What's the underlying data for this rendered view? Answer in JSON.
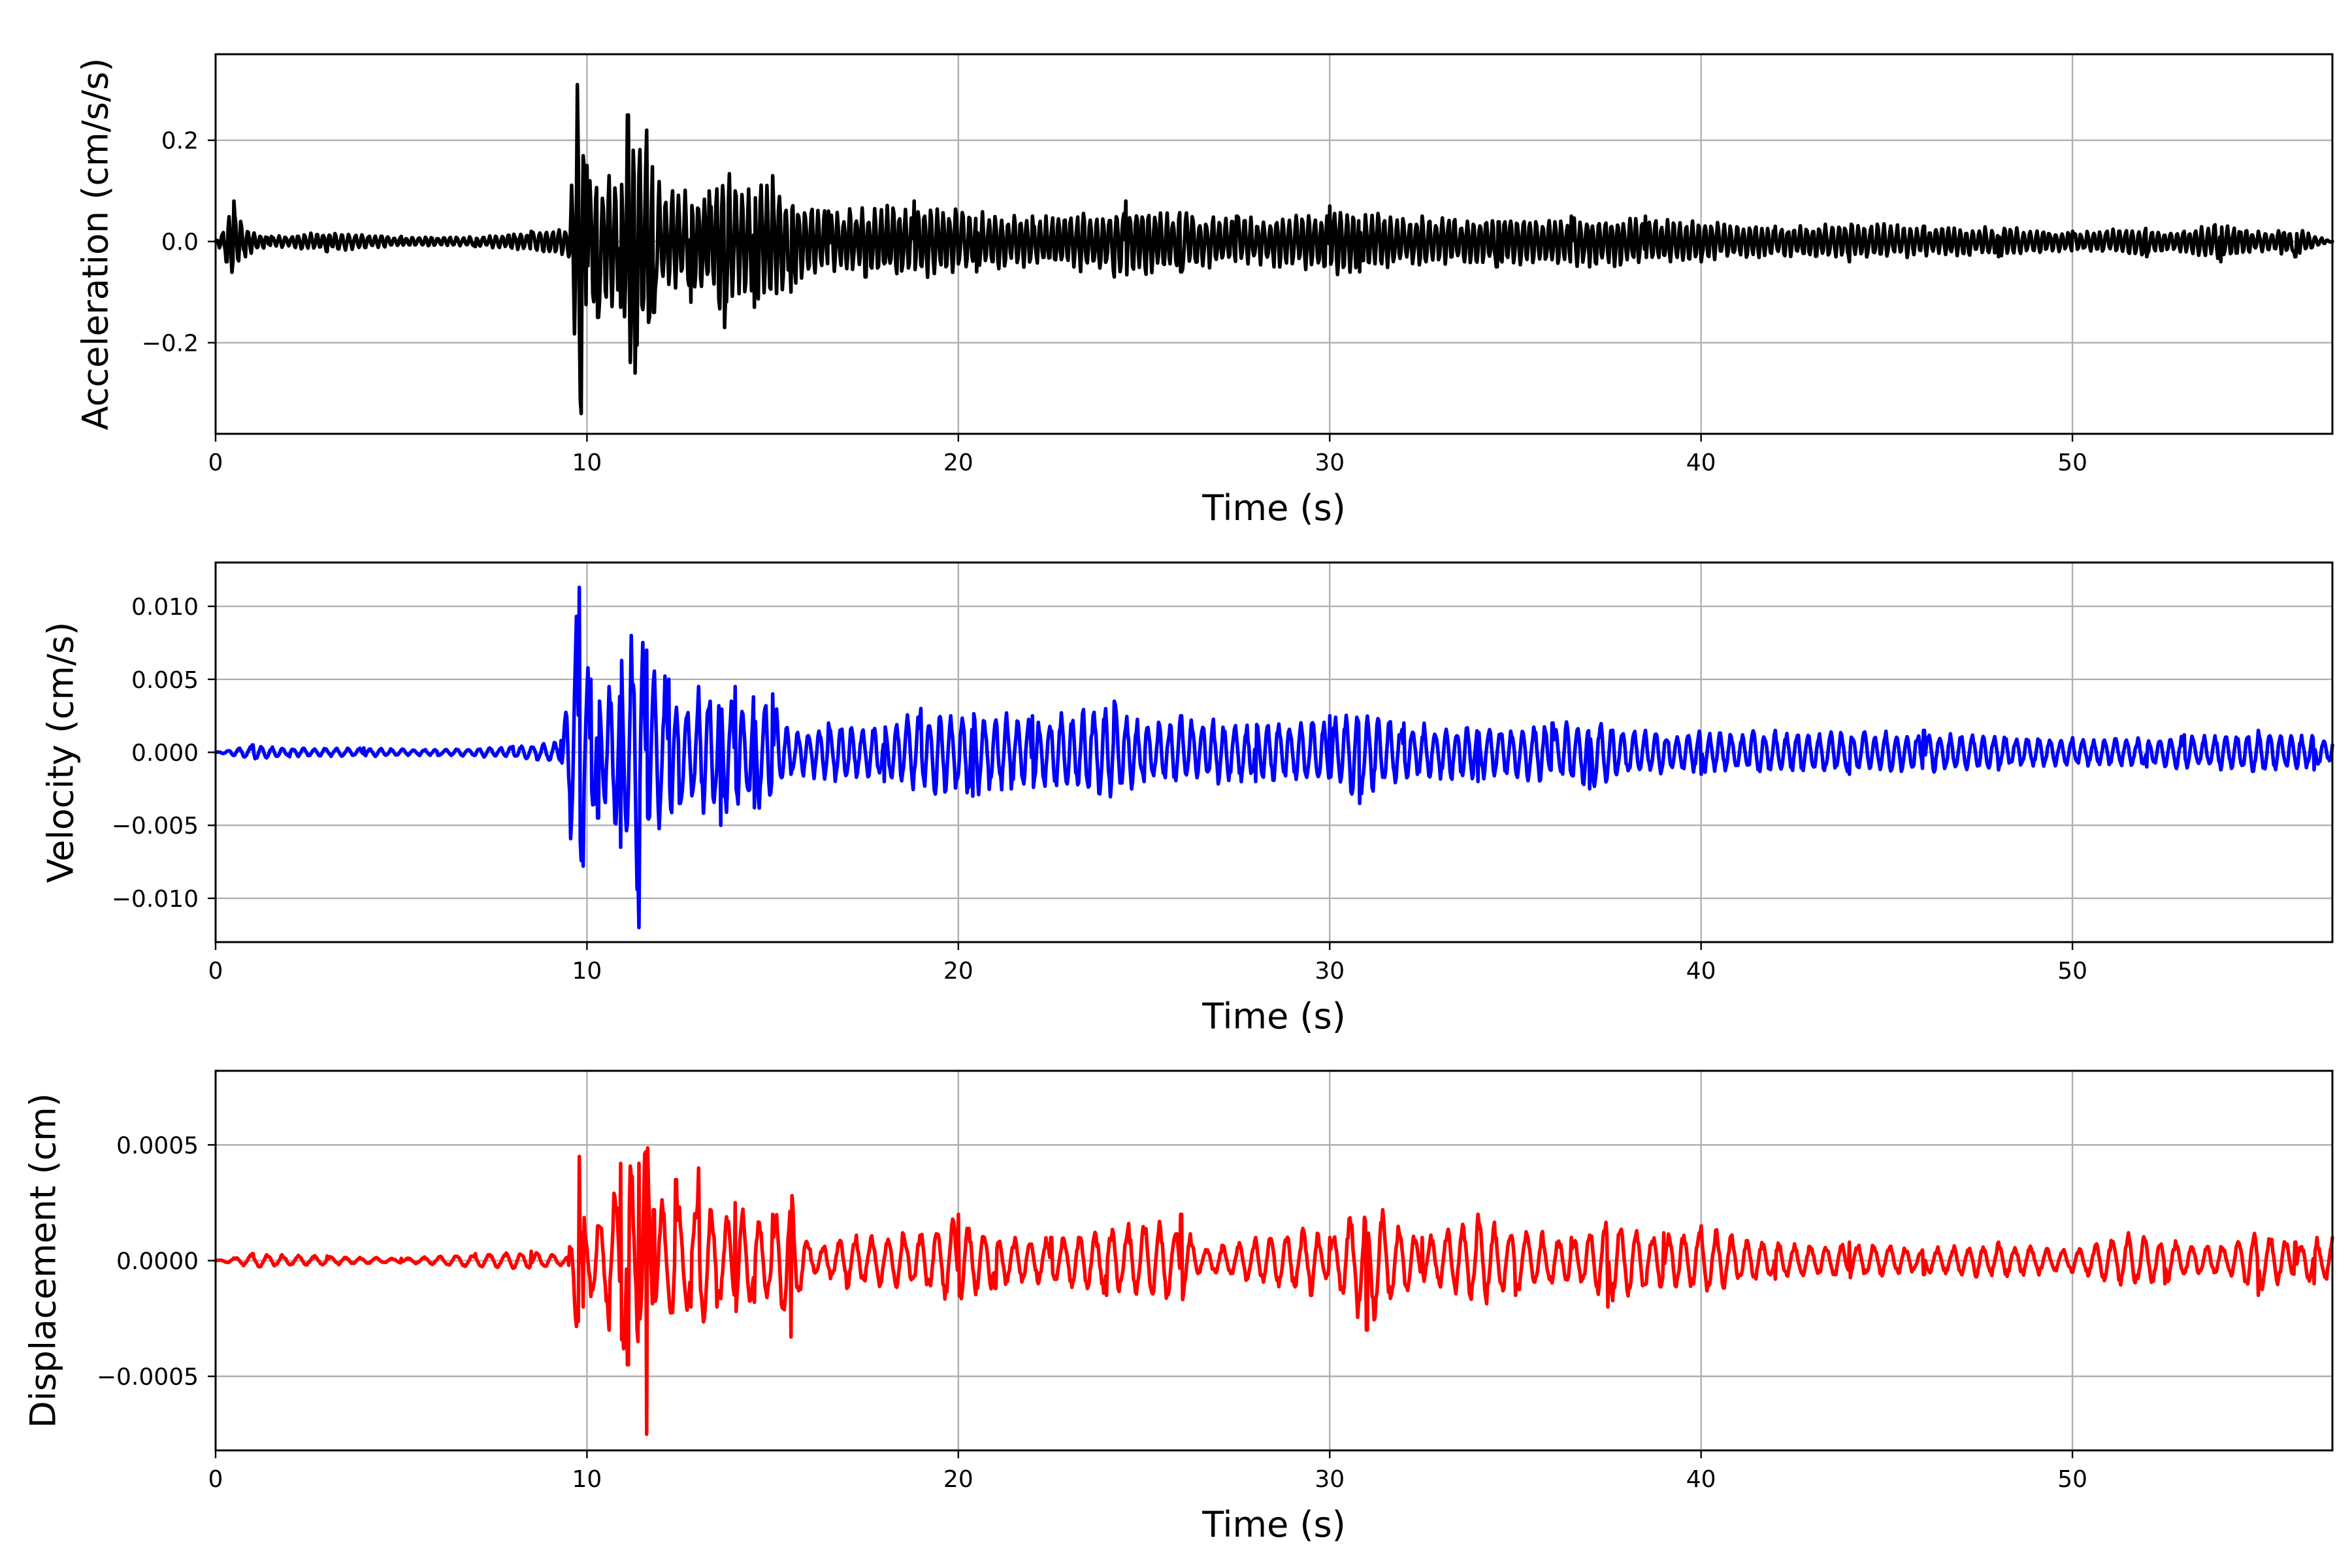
{
  "chart_data": [
    {
      "type": "line",
      "xlabel": "Time (s)",
      "ylabel": "Acceleration (cm/s/s)",
      "xlim": [
        0,
        57
      ],
      "ylim": [
        -0.38,
        0.37
      ],
      "xticks": [
        0,
        10,
        20,
        30,
        40,
        50
      ],
      "xtick_labels": [
        "0",
        "10",
        "20",
        "30",
        "40",
        "50"
      ],
      "yticks": [
        -0.2,
        0.0,
        0.2
      ],
      "ytick_labels": [
        "−0.2",
        "0.0",
        "0.2"
      ],
      "grid": true,
      "color": "#000000",
      "series": [
        {
          "x": [
            0,
            0.3,
            0.5,
            0.8,
            1.5,
            3,
            5,
            7,
            8.5,
            9.5,
            9.75,
            9.85,
            10.0,
            10.3,
            10.6,
            10.9,
            11.1,
            11.3,
            11.6,
            11.8,
            12.3,
            12.8,
            13.3,
            13.7,
            14.0,
            14.5,
            15.0,
            15.5,
            16.5,
            17.5,
            18.8,
            20.5,
            22.0,
            24.2,
            24.5,
            26.0,
            27.5,
            28.5,
            30.0,
            30.8,
            32.5,
            34.5,
            36.5,
            37.0,
            38.5,
            40.0,
            42.0,
            44.0,
            46.0,
            48.0,
            50.0,
            52.0,
            53.0,
            54.0,
            55.0,
            56.0,
            57.0
          ],
          "y": [
            0.0,
            -0.04,
            0.08,
            -0.03,
            0.01,
            -0.02,
            0.01,
            -0.01,
            0.02,
            -0.03,
            0.31,
            -0.34,
            0.15,
            -0.15,
            0.13,
            -0.13,
            0.25,
            -0.26,
            0.22,
            -0.14,
            0.1,
            -0.12,
            0.1,
            -0.17,
            0.1,
            -0.13,
            0.13,
            -0.1,
            0.06,
            -0.07,
            0.08,
            -0.06,
            0.05,
            -0.07,
            0.08,
            -0.06,
            0.05,
            -0.05,
            0.07,
            -0.06,
            0.05,
            -0.05,
            0.05,
            -0.05,
            0.05,
            -0.04,
            0.03,
            -0.04,
            0.03,
            -0.03,
            0.02,
            -0.03,
            0.02,
            -0.04,
            0.02,
            -0.03,
            0.0
          ]
        }
      ]
    },
    {
      "type": "line",
      "xlabel": "Time (s)",
      "ylabel": "Velocity (cm/s)",
      "xlim": [
        0,
        57
      ],
      "ylim": [
        -0.013,
        0.013
      ],
      "xticks": [
        0,
        10,
        20,
        30,
        40,
        50
      ],
      "xtick_labels": [
        "0",
        "10",
        "20",
        "30",
        "40",
        "50"
      ],
      "yticks": [
        -0.01,
        -0.005,
        0.0,
        0.005,
        0.01
      ],
      "ytick_labels": [
        "−0.010",
        "−0.005",
        "0.000",
        "0.005",
        "0.010"
      ],
      "grid": true,
      "color": "#0000ff",
      "series": [
        {
          "x": [
            0,
            1,
            2,
            4,
            6,
            8,
            9.3,
            9.8,
            9.9,
            10.1,
            10.3,
            10.6,
            10.9,
            11.2,
            11.4,
            11.6,
            12.2,
            12.5,
            13.0,
            13.6,
            14.0,
            14.5,
            15.0,
            15.5,
            16.5,
            18.0,
            19.0,
            20.4,
            22.0,
            24.2,
            25.0,
            26.0,
            28.0,
            30.0,
            30.8,
            32.0,
            34.0,
            36.0,
            37.0,
            38.5,
            40.0,
            42.0,
            44.0,
            46.0,
            48.0,
            50.0,
            52.0,
            53.0,
            54.0,
            55.0,
            56.5,
            57.0
          ],
          "y": [
            0.0,
            0.0005,
            -0.0003,
            0.0003,
            -0.0002,
            0.0004,
            0.0008,
            0.0113,
            -0.0078,
            0.005,
            -0.0045,
            0.0045,
            -0.0065,
            0.008,
            -0.012,
            0.007,
            0.005,
            -0.0035,
            0.0045,
            -0.005,
            0.0045,
            -0.0038,
            0.004,
            -0.0015,
            0.002,
            -0.002,
            0.003,
            -0.003,
            0.0025,
            0.0035,
            -0.002,
            0.0025,
            -0.002,
            0.0025,
            -0.0035,
            0.002,
            -0.002,
            0.002,
            -0.0025,
            0.0015,
            -0.0015,
            0.0015,
            -0.0015,
            0.0015,
            -0.0012,
            0.001,
            -0.001,
            0.0012,
            -0.0012,
            0.0015,
            -0.0012,
            0.0005
          ]
        }
      ]
    },
    {
      "type": "line",
      "xlabel": "Time (s)",
      "ylabel": "Displacement (cm)",
      "xlim": [
        0,
        57
      ],
      "ylim": [
        -0.00082,
        0.00082
      ],
      "xticks": [
        0,
        10,
        20,
        30,
        40,
        50
      ],
      "xtick_labels": [
        "0",
        "10",
        "20",
        "30",
        "40",
        "50"
      ],
      "yticks": [
        -0.0005,
        0.0,
        0.0005
      ],
      "ytick_labels": [
        "−0.0005",
        "0.0000",
        "0.0005"
      ],
      "grid": true,
      "color": "#ff0000",
      "series": [
        {
          "x": [
            0,
            1,
            3,
            5,
            7,
            8.5,
            9.5,
            9.8,
            9.9,
            10.3,
            10.6,
            10.9,
            11.1,
            11.4,
            11.6,
            11.8,
            12.4,
            12.8,
            13.0,
            13.5,
            14.0,
            14.5,
            15.0,
            15.5,
            16.0,
            17.0,
            18.5,
            20.0,
            21.0,
            22.5,
            24.0,
            26.0,
            26.5,
            28.0,
            29.5,
            30.0,
            31.0,
            32.5,
            34.0,
            35.0,
            36.5,
            37.5,
            39.0,
            40.0,
            42.0,
            44.0,
            46.0,
            48.0,
            50.0,
            51.5,
            52.5,
            54.0,
            55.0,
            56.0,
            56.5,
            57.0
          ],
          "y": [
            0.0,
            3e-05,
            2e-05,
            1e-05,
            3e-05,
            4e-05,
            -2e-05,
            0.00045,
            -0.0002,
            0.00015,
            -0.0003,
            0.00042,
            -0.00045,
            0.00042,
            -0.00075,
            0.00022,
            0.00035,
            -0.0002,
            0.0004,
            -0.0002,
            0.00025,
            -0.00018,
            0.0002,
            -0.00033,
            5e-05,
            -0.00012,
            0.00012,
            0.0002,
            -0.00012,
            0.0001,
            -0.00015,
            0.0002,
            -5e-05,
            0.0001,
            -0.00015,
            0.0001,
            -0.0003,
            0.0001,
            0.0002,
            -0.00015,
            0.0001,
            -0.0002,
            0.00012,
            0.00015,
            -8e-05,
            8e-05,
            -6e-05,
            8e-05,
            -5e-05,
            0.00012,
            -0.0001,
            6e-05,
            -0.00015,
            8e-05,
            -0.0001,
            0.0001
          ]
        }
      ]
    }
  ]
}
